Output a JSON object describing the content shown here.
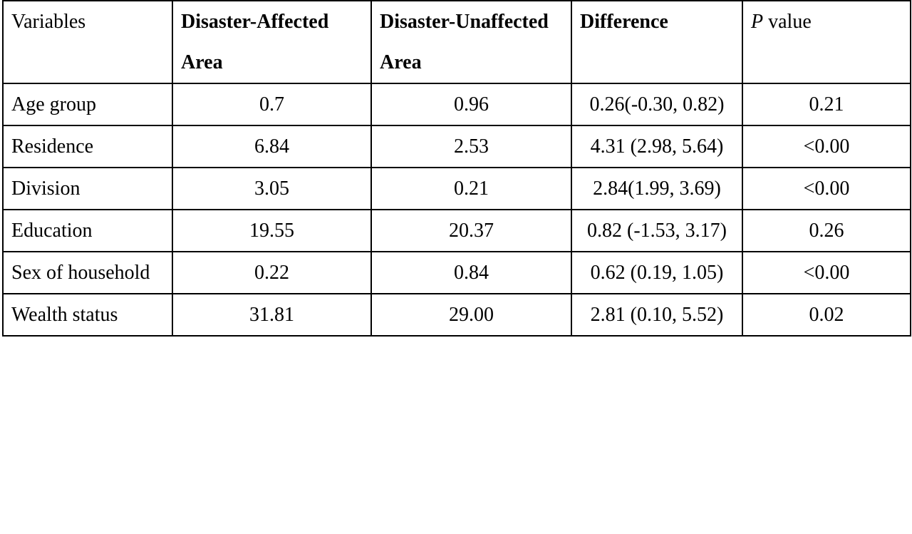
{
  "header": {
    "variables": "Variables",
    "affected": "Disaster-Affected Area",
    "unaffected": "Disaster-Unaffected Area",
    "difference": "Difference",
    "p_italic": "P",
    "p_rest": " value"
  },
  "rows": [
    {
      "variable": "Age group",
      "affected": "0.7",
      "unaffected": "0.96",
      "difference": "0.26(-0.30, 0.82)",
      "p": "0.21"
    },
    {
      "variable": "Residence",
      "affected": "6.84",
      "unaffected": "2.53",
      "difference": "4.31 (2.98, 5.64)",
      "p": "<0.00"
    },
    {
      "variable": "Division",
      "affected": "3.05",
      "unaffected": "0.21",
      "difference": "2.84(1.99, 3.69)",
      "p": "<0.00"
    },
    {
      "variable": "Education",
      "affected": "19.55",
      "unaffected": "20.37",
      "difference": "0.82 (-1.53, 3.17)",
      "p": "0.26"
    },
    {
      "variable": "Sex of household",
      "affected": "0.22",
      "unaffected": "0.84",
      "difference": "0.62 (0.19, 1.05)",
      "p": "<0.00"
    },
    {
      "variable": "Wealth status",
      "affected": "31.81",
      "unaffected": "29.00",
      "difference": "2.81 (0.10, 5.52)",
      "p": "0.02"
    }
  ]
}
